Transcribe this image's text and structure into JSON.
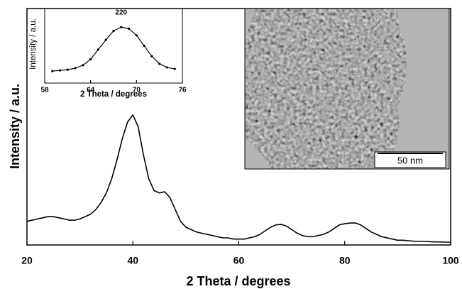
{
  "chart_data": [
    {
      "type": "line",
      "xlabel": "2 Theta / degrees",
      "ylabel": "Intensity / a.u.",
      "color": "#000000",
      "xlim": [
        20,
        100
      ],
      "xticks": [
        20,
        40,
        60,
        80,
        100
      ],
      "ylim": [
        0,
        100
      ],
      "x": [
        20,
        21,
        22,
        23,
        24,
        25,
        26,
        27,
        28,
        29,
        30,
        31,
        32,
        33,
        34,
        35,
        36,
        37,
        38,
        39,
        40,
        41,
        42,
        43,
        44,
        45,
        46,
        47,
        48,
        49,
        50,
        51,
        52,
        53,
        54,
        55,
        56,
        57,
        58,
        59,
        60,
        61,
        62,
        63,
        64,
        65,
        66,
        67,
        68,
        69,
        70,
        71,
        72,
        73,
        74,
        75,
        76,
        77,
        78,
        79,
        80,
        81,
        82,
        83,
        84,
        85,
        86,
        87,
        88,
        89,
        90,
        91,
        92,
        93,
        94,
        95,
        96,
        97,
        98,
        99,
        100
      ],
      "values": [
        10,
        10.5,
        11,
        11.5,
        12,
        12,
        11.5,
        11,
        10.5,
        10.5,
        11,
        12,
        13,
        15,
        18,
        22,
        28,
        36,
        45,
        52,
        55,
        50,
        38,
        28,
        23,
        22,
        22.5,
        20,
        15,
        10,
        7.5,
        6.5,
        5.5,
        5,
        4.5,
        4,
        3.5,
        3,
        3,
        2.5,
        2.5,
        2.5,
        3,
        3.5,
        4.5,
        6,
        7.5,
        8.5,
        8.7,
        8,
        6.5,
        5,
        4,
        3.5,
        3.5,
        4,
        4.5,
        5.5,
        7,
        8.5,
        9,
        9.3,
        9.3,
        8.5,
        7,
        5.5,
        4.5,
        3.5,
        3,
        2.5,
        2,
        2,
        1.8,
        1.6,
        1.5,
        1.5,
        1.4,
        1.3,
        1.3,
        1.2,
        1.2
      ]
    },
    {
      "type": "line",
      "xlabel": "2 Theta / degrees",
      "ylabel": "Intensity / a.u.",
      "color": "#000000",
      "xlim": [
        58,
        76
      ],
      "xticks": [
        58,
        64,
        70,
        76
      ],
      "ylim": [
        0,
        100
      ],
      "annotation": {
        "text": "220",
        "x": 68
      },
      "x": [
        59,
        60,
        61,
        62,
        63,
        64,
        65,
        66,
        67,
        68,
        69,
        70,
        71,
        72,
        73,
        74,
        75
      ],
      "values": [
        16,
        17,
        18,
        20,
        24,
        32,
        45,
        58,
        70,
        75,
        73,
        64,
        50,
        36,
        26,
        21,
        19
      ]
    }
  ],
  "image": {
    "scale_label": "50 nm"
  }
}
